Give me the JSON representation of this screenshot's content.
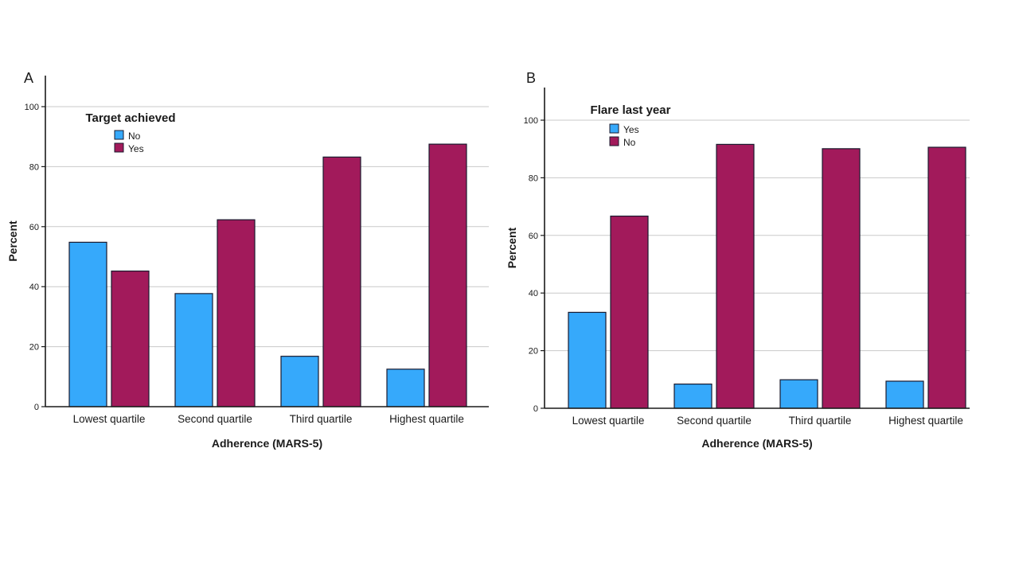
{
  "page": {
    "background": "#ffffff"
  },
  "chart_data": [
    {
      "type": "bar",
      "panel_label": "A",
      "legend_title": "Target achieved",
      "legend_position": "inside-top-left",
      "xlabel": "Adherence (MARS-5)",
      "ylabel": "Percent",
      "categories": [
        "Lowest quartile",
        "Second quartile",
        "Third quartile",
        "Highest quartile"
      ],
      "yticks": [
        0,
        20,
        40,
        60,
        80,
        100
      ],
      "ylim": [
        0,
        100
      ],
      "grid": true,
      "series": [
        {
          "name": "No",
          "color": "#36a9fb",
          "values": [
            54.8,
            37.7,
            16.8,
            12.5
          ]
        },
        {
          "name": "Yes",
          "color": "#a21a5b",
          "values": [
            45.2,
            62.3,
            83.2,
            87.5
          ]
        }
      ]
    },
    {
      "type": "bar",
      "panel_label": "B",
      "legend_title": "Flare last year",
      "legend_position": "inside-top-left",
      "xlabel": "Adherence (MARS-5)",
      "ylabel": "Percent",
      "categories": [
        "Lowest quartile",
        "Second quartile",
        "Third quartile",
        "Highest quartile"
      ],
      "yticks": [
        0,
        20,
        40,
        60,
        80,
        100
      ],
      "ylim": [
        0,
        100
      ],
      "grid": true,
      "series": [
        {
          "name": "Yes",
          "color": "#36a9fb",
          "values": [
            33.3,
            8.4,
            9.9,
            9.4
          ]
        },
        {
          "name": "No",
          "color": "#a21a5b",
          "values": [
            66.7,
            91.6,
            90.1,
            90.6
          ]
        }
      ]
    }
  ],
  "style": {
    "grid_color": "#c9c9c9",
    "axis_color": "#1a1a1a",
    "bar_border_color": "#1a1a2e",
    "text_color": "#1a1a1a"
  }
}
